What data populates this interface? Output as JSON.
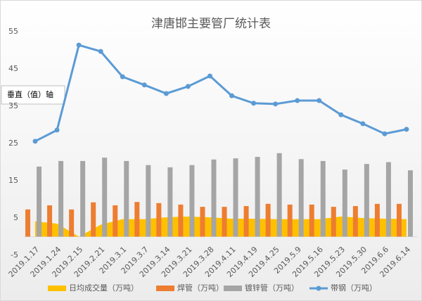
{
  "chart_data": {
    "type": "combo",
    "title": "津唐邯主要管厂统计表",
    "annotation": "垂直（值）轴",
    "categories": [
      "2019.1.17",
      "2019.1.24",
      "2019.2.15",
      "2019.2.21",
      "2019.3.1",
      "2019.3.7",
      "2019.3.14",
      "2019.3.21",
      "2019.3.28",
      "2019.4.11",
      "2019.4.19",
      "2019.4.25",
      "2019.5.9",
      "2019.5.16",
      "2019.5.23",
      "2019.5.30",
      "2019.6.6",
      "2019.6.14"
    ],
    "series": [
      {
        "name": "日均成交量（万吨）",
        "kind": "area",
        "color": "#ffc000",
        "values": [
          4.1,
          3.5,
          0,
          3.2,
          4.7,
          4.7,
          5.2,
          5.4,
          5.2,
          4.8,
          4.8,
          4.7,
          4.7,
          4.7,
          5.4,
          5,
          4.8,
          4.7
        ]
      },
      {
        "name": "焊管（万吨）",
        "kind": "bar",
        "color": "#ed7d31",
        "values": [
          7.3,
          8.4,
          7.3,
          9.2,
          8.4,
          9.3,
          9,
          8.6,
          8,
          8,
          8.2,
          8.8,
          8.6,
          8.6,
          8,
          8.2,
          8.8,
          8.8
        ]
      },
      {
        "name": "镀锌管（万吨）",
        "kind": "bar",
        "color": "#a5a5a5",
        "values": [
          18.8,
          20.3,
          20.3,
          21.2,
          20.3,
          19.2,
          18.6,
          19.2,
          20.7,
          21,
          21.4,
          22.4,
          20.8,
          20.3,
          18,
          19.5,
          20,
          17.8
        ]
      },
      {
        "name": "带钢（万吨）",
        "kind": "line",
        "color": "#5b9bd5",
        "values": [
          25.6,
          28.6,
          51.4,
          49.7,
          42.9,
          40.7,
          38.4,
          40.3,
          43.1,
          37.8,
          35.8,
          35.6,
          36.5,
          36.5,
          32.7,
          30.3,
          27.6,
          28.8
        ]
      }
    ],
    "ylim": [
      -5,
      55
    ],
    "yticks": [
      -5,
      5,
      15,
      25,
      35,
      45,
      55
    ],
    "grid": false
  }
}
